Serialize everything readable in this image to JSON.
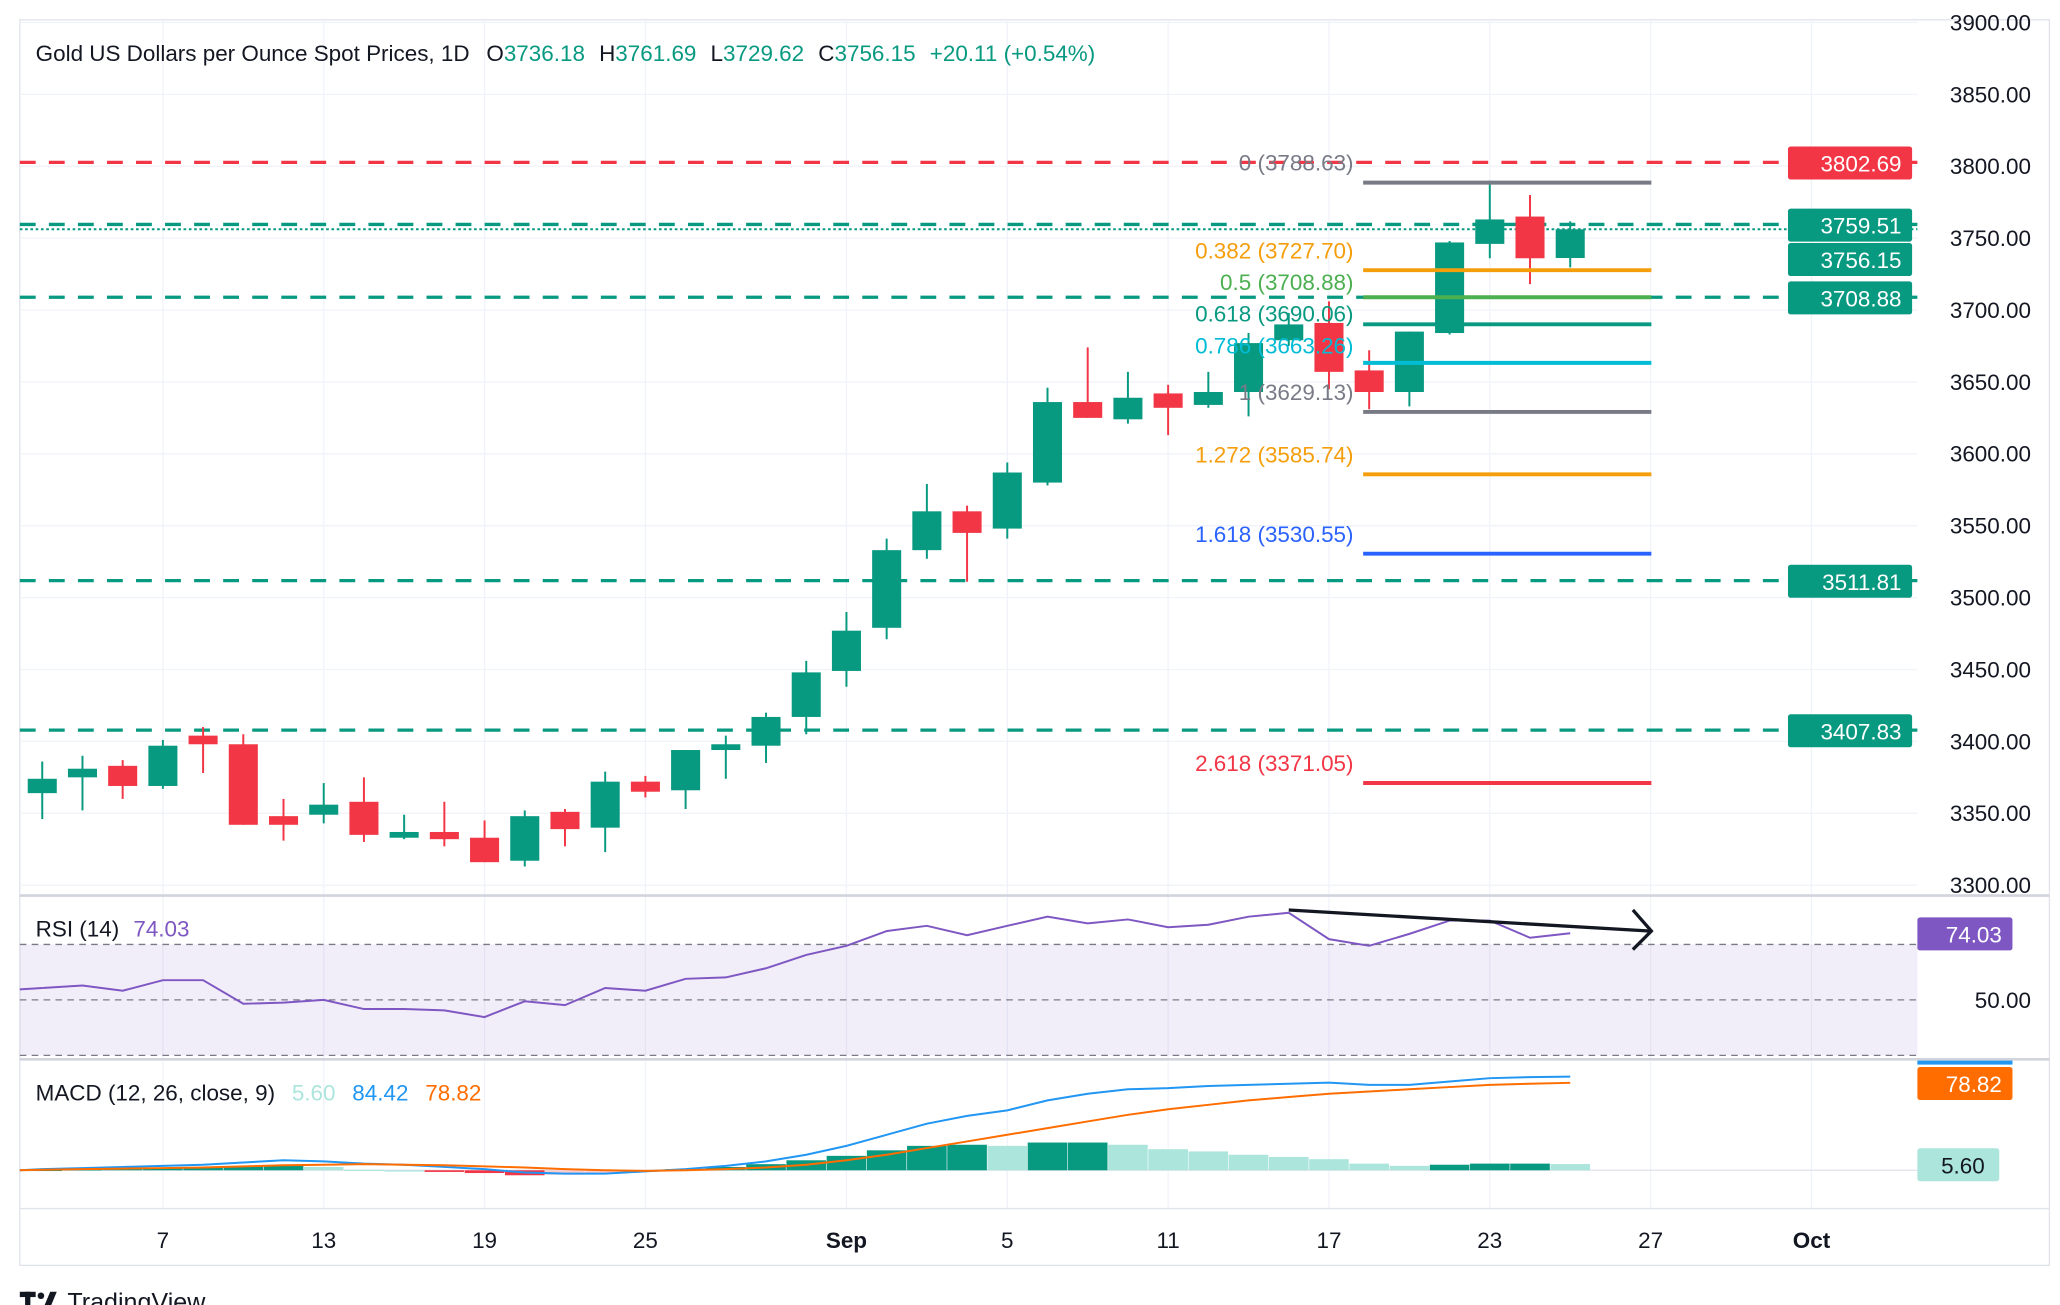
{
  "header": {
    "symbol": "Gold US Dollars per Ounce Spot Prices, 1D",
    "o_label": "O",
    "o_value": "3736.18",
    "h_label": "H",
    "h_value": "3761.69",
    "l_label": "L",
    "l_value": "3729.62",
    "c_label": "C",
    "c_value": "3756.15",
    "change": "+20.11 (+0.54%)"
  },
  "colors": {
    "up": "#089981",
    "down": "#F23645",
    "rsi": "#7E57C2",
    "macd": "#2196F3",
    "signal": "#FF6D00",
    "hist_up_strong": "#089981",
    "hist_up_weak": "#ACE5DC",
    "hist_down_strong": "#F23645",
    "hist_down_weak": "#FCCBCD",
    "grid": "#F0F3FA"
  },
  "footer": {
    "brand": "TradingView"
  },
  "chart_data": [
    {
      "type": "candlestick",
      "title": "Gold US Dollars per Ounce Spot Prices, 1D",
      "ylim": [
        3290,
        3910
      ],
      "y_ticks": [
        "3900.00",
        "3850.00",
        "3800.00",
        "3750.00",
        "3700.00",
        "3650.00",
        "3600.00",
        "3550.00",
        "3500.00",
        "3450.00",
        "3400.00",
        "3350.00",
        "3300.00"
      ],
      "x_ticks": [
        {
          "label": "7",
          "bar": 3
        },
        {
          "label": "13",
          "bar": 7
        },
        {
          "label": "19",
          "bar": 11
        },
        {
          "label": "25",
          "bar": 15
        },
        {
          "label": "Sep",
          "bar": 20,
          "bold": true
        },
        {
          "label": "5",
          "bar": 24
        },
        {
          "label": "11",
          "bar": 28
        },
        {
          "label": "17",
          "bar": 32
        },
        {
          "label": "23",
          "bar": 36
        },
        {
          "label": "27",
          "bar": 40
        },
        {
          "label": "Oct",
          "bar": 44,
          "bold": true
        }
      ],
      "candles": [
        [
          3364,
          3386,
          3346,
          3374
        ],
        [
          3375,
          3390,
          3352,
          3381
        ],
        [
          3383,
          3387,
          3360,
          3369
        ],
        [
          3369,
          3401,
          3367,
          3397
        ],
        [
          3404,
          3410,
          3378,
          3398
        ],
        [
          3398,
          3405,
          3342,
          3342
        ],
        [
          3348,
          3360,
          3331,
          3342
        ],
        [
          3349,
          3371,
          3343,
          3356
        ],
        [
          3358,
          3375,
          3330,
          3335
        ],
        [
          3333,
          3349,
          3332,
          3337
        ],
        [
          3337,
          3358,
          3327,
          3332
        ],
        [
          3333,
          3345,
          3316,
          3316
        ],
        [
          3317,
          3352,
          3313,
          3348
        ],
        [
          3351,
          3353,
          3327,
          3339
        ],
        [
          3340,
          3379,
          3323,
          3372
        ],
        [
          3372,
          3376,
          3361,
          3365
        ],
        [
          3366,
          3394,
          3353,
          3394
        ],
        [
          3394,
          3404,
          3374,
          3398
        ],
        [
          3397,
          3420,
          3385,
          3417
        ],
        [
          3417,
          3456,
          3405,
          3448
        ],
        [
          3449,
          3490,
          3438,
          3477
        ],
        [
          3479,
          3541,
          3471,
          3533
        ],
        [
          3533,
          3579,
          3527,
          3560
        ],
        [
          3560,
          3564,
          3511,
          3545
        ],
        [
          3548,
          3594,
          3541,
          3587
        ],
        [
          3580,
          3646,
          3578,
          3636
        ],
        [
          3636,
          3674,
          3625,
          3625
        ],
        [
          3624,
          3657,
          3621,
          3639
        ],
        [
          3642,
          3648,
          3613,
          3632
        ],
        [
          3634,
          3657,
          3632,
          3643
        ],
        [
          3643,
          3684,
          3626,
          3677
        ],
        [
          3679,
          3698,
          3675,
          3690
        ],
        [
          3691,
          3706,
          3645,
          3657
        ],
        [
          3658,
          3672,
          3631,
          3643
        ],
        [
          3643,
          3685,
          3633,
          3685
        ],
        [
          3684,
          3748,
          3683,
          3747
        ],
        [
          3746,
          3790,
          3736,
          3763
        ],
        [
          3765,
          3780,
          3718,
          3736
        ],
        [
          3736.18,
          3761.69,
          3729.62,
          3756.15
        ]
      ],
      "horizontal_lines": [
        {
          "price": 3802.69,
          "label": "3802.69",
          "color": "#F23645",
          "style": "dashed"
        },
        {
          "price": 3759.51,
          "label": "3759.51",
          "color": "#089981",
          "style": "dashed"
        },
        {
          "price": 3756.15,
          "label": "3756.15",
          "color": "#089981",
          "style": "dotted"
        },
        {
          "price": 3708.88,
          "label": "3708.88",
          "color": "#089981",
          "style": "dashed"
        },
        {
          "price": 3511.81,
          "label": "3511.81",
          "color": "#089981",
          "style": "dashed"
        },
        {
          "price": 3407.83,
          "label": "3407.83",
          "color": "#089981",
          "style": "dashed"
        }
      ],
      "fibonacci": {
        "start_bar": 33,
        "end_bar": 39,
        "levels": [
          {
            "label": "0 (3788.63)",
            "price": 3788.63,
            "color": "#787B86"
          },
          {
            "label": "0.382 (3727.70)",
            "price": 3727.7,
            "color": "#F59E0B"
          },
          {
            "label": "0.5 (3708.88)",
            "price": 3708.88,
            "color": "#4CAF50"
          },
          {
            "label": "0.618 (3690.06)",
            "price": 3690.06,
            "color": "#089981"
          },
          {
            "label": "0.786 (3663.26)",
            "price": 3663.26,
            "color": "#00BCD4"
          },
          {
            "label": "1 (3629.13)",
            "price": 3629.13,
            "color": "#787B86"
          },
          {
            "label": "1.272 (3585.74)",
            "price": 3585.74,
            "color": "#F59E0B"
          },
          {
            "label": "1.618 (3530.55)",
            "price": 3530.55,
            "color": "#2962FF"
          },
          {
            "label": "2.618 (3371.05)",
            "price": 3371.05,
            "color": "#F23645"
          }
        ]
      }
    },
    {
      "type": "line",
      "title": "RSI (14)",
      "last_value": "74.03",
      "ylim": [
        30,
        86.7
      ],
      "levels": [
        70,
        50,
        30
      ],
      "axis_label": "50.00",
      "values": [
        54.3,
        55.2,
        53.3,
        57.1,
        57.1,
        48.6,
        49.0,
        50.0,
        46.7,
        46.7,
        46.2,
        43.8,
        49.5,
        48.1,
        54.3,
        53.3,
        57.6,
        58.1,
        61.4,
        66.2,
        69.5,
        74.8,
        76.7,
        73.3,
        76.7,
        80.0,
        77.6,
        79.0,
        76.2,
        77.1,
        80.0,
        81.4,
        71.9,
        69.5,
        73.8,
        78.6,
        78.6,
        72.4,
        74.03
      ],
      "trend_arrow": {
        "from": {
          "bar": 31,
          "rsi": 82.4
        },
        "to": {
          "bar": 39,
          "rsi": 74.8
        }
      }
    },
    {
      "type": "line+histogram",
      "title": "MACD (12, 26, close, 9)",
      "hist_value": "5.60",
      "macd_value": "84.42",
      "signal_value": "78.82",
      "ylim": [
        -10,
        100
      ],
      "macd": [
        1,
        2,
        3,
        4,
        5,
        7,
        9,
        8,
        6,
        5,
        3,
        1,
        -2,
        -3,
        -3,
        -1,
        1,
        4,
        8,
        14,
        22,
        32,
        42,
        49,
        54,
        63,
        69,
        73,
        74,
        76,
        77,
        78,
        79,
        77,
        77,
        80,
        83,
        84,
        84.42
      ],
      "signal": [
        0.5,
        1,
        1.5,
        2,
        2.5,
        3.5,
        4.5,
        5,
        5.5,
        5,
        4.5,
        3.5,
        2.5,
        1,
        0,
        -0.5,
        0,
        1,
        2.5,
        5,
        9,
        14,
        20,
        26,
        32,
        38,
        44,
        50,
        55,
        59,
        63,
        66,
        69,
        71,
        73,
        75,
        77,
        78,
        78.82
      ]
    }
  ]
}
